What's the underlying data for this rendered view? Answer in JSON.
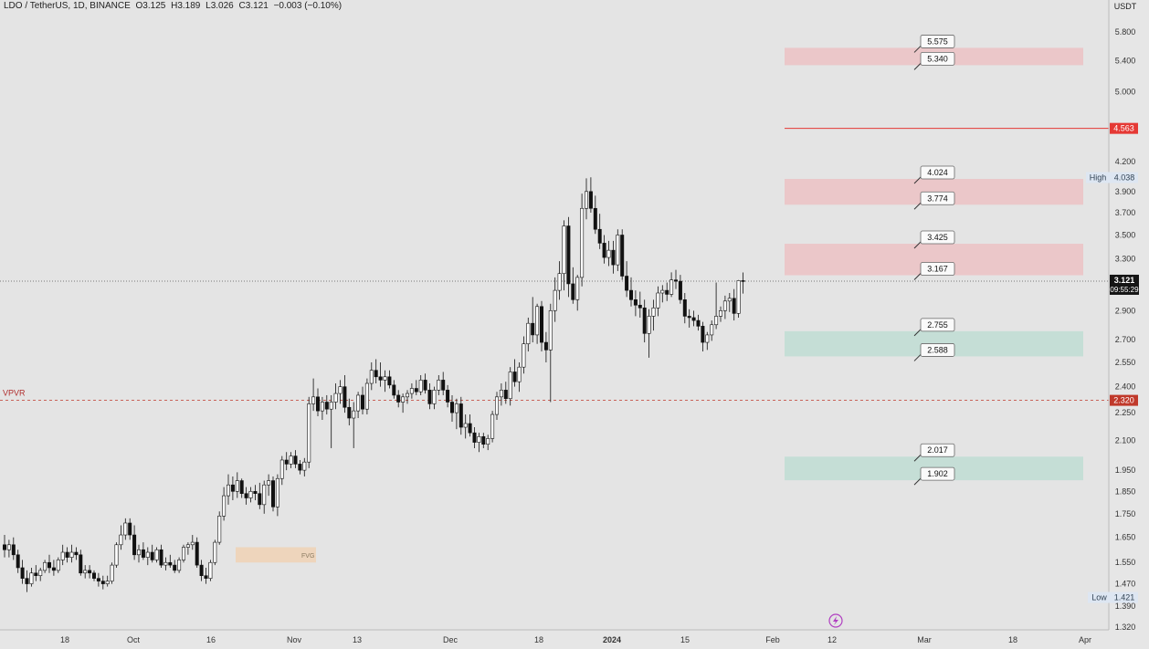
{
  "header": {
    "symbol": "LDO / TetherUS, 1D, BINANCE",
    "open": "O3.125",
    "high": "H3.189",
    "low": "L3.026",
    "close": "C3.121",
    "change": "−0.003 (−0.10%)"
  },
  "axis": {
    "currency": "USDT",
    "y_ticks": [
      "5.800",
      "5.400",
      "5.000",
      "4.200",
      "3.900",
      "3.700",
      "3.500",
      "3.300",
      "2.900",
      "2.700",
      "2.550",
      "2.400",
      "2.250",
      "2.100",
      "1.950",
      "1.850",
      "1.750",
      "1.650",
      "1.550",
      "1.470",
      "1.390",
      "1.320"
    ],
    "x_ticks": [
      "18",
      "Oct",
      "16",
      "Nov",
      "13",
      "Dec",
      "18",
      "2024",
      "15",
      "Feb",
      "12",
      "Mar",
      "18",
      "Apr"
    ]
  },
  "labels": {
    "vpvr": "VPVR",
    "fvg": "FVG",
    "high_label": "High",
    "high_value": "4.038",
    "low_label": "Low",
    "low_value": "1.421",
    "last_price": "3.121",
    "countdown": "09:55:29",
    "resistance_line_value": "4.563",
    "vpvr_value": "2.320",
    "level_tags": [
      "5.575",
      "5.340",
      "4.024",
      "3.774",
      "3.425",
      "3.167",
      "2.755",
      "2.588",
      "2.017",
      "1.902"
    ]
  },
  "colors": {
    "background": "#e4e4e4",
    "supply_zone": "#f4a3a8",
    "demand_zone": "#9fd6c6",
    "fvg_zone": "#f5c99a",
    "resistance_line": "#e53935",
    "vpvr_line": "#c0392b",
    "candle_up": "#ffffff",
    "candle_down": "#111111"
  },
  "chart_data": {
    "type": "candlestick",
    "title": "LDO / TetherUS, 1D, BINANCE",
    "ylim": [
      1.3,
      6.0
    ],
    "y_scale": "log",
    "resistance_line": 4.563,
    "vpvr_line": 2.32,
    "all_time_high": 4.038,
    "all_time_low": 1.421,
    "supply_zones": [
      [
        5.34,
        5.575
      ],
      [
        3.774,
        4.024
      ],
      [
        3.167,
        3.425
      ]
    ],
    "demand_zones": [
      [
        2.588,
        2.755
      ],
      [
        1.902,
        2.017
      ]
    ],
    "fvg_zone": [
      1.55,
      1.61
    ],
    "candles": [
      {
        "o": 1.62,
        "h": 1.66,
        "l": 1.57,
        "c": 1.6
      },
      {
        "o": 1.6,
        "h": 1.64,
        "l": 1.57,
        "c": 1.62
      },
      {
        "o": 1.62,
        "h": 1.65,
        "l": 1.56,
        "c": 1.58
      },
      {
        "o": 1.58,
        "h": 1.6,
        "l": 1.51,
        "c": 1.53
      },
      {
        "o": 1.53,
        "h": 1.56,
        "l": 1.47,
        "c": 1.49
      },
      {
        "o": 1.49,
        "h": 1.52,
        "l": 1.44,
        "c": 1.47
      },
      {
        "o": 1.47,
        "h": 1.53,
        "l": 1.46,
        "c": 1.51
      },
      {
        "o": 1.51,
        "h": 1.54,
        "l": 1.48,
        "c": 1.5
      },
      {
        "o": 1.5,
        "h": 1.53,
        "l": 1.48,
        "c": 1.52
      },
      {
        "o": 1.52,
        "h": 1.56,
        "l": 1.51,
        "c": 1.55
      },
      {
        "o": 1.55,
        "h": 1.58,
        "l": 1.51,
        "c": 1.53
      },
      {
        "o": 1.53,
        "h": 1.56,
        "l": 1.5,
        "c": 1.52
      },
      {
        "o": 1.52,
        "h": 1.57,
        "l": 1.51,
        "c": 1.56
      },
      {
        "o": 1.56,
        "h": 1.62,
        "l": 1.54,
        "c": 1.59
      },
      {
        "o": 1.59,
        "h": 1.61,
        "l": 1.55,
        "c": 1.57
      },
      {
        "o": 1.57,
        "h": 1.62,
        "l": 1.55,
        "c": 1.59
      },
      {
        "o": 1.59,
        "h": 1.61,
        "l": 1.56,
        "c": 1.58
      },
      {
        "o": 1.58,
        "h": 1.6,
        "l": 1.5,
        "c": 1.51
      },
      {
        "o": 1.51,
        "h": 1.54,
        "l": 1.49,
        "c": 1.52
      },
      {
        "o": 1.52,
        "h": 1.54,
        "l": 1.49,
        "c": 1.51
      },
      {
        "o": 1.51,
        "h": 1.52,
        "l": 1.48,
        "c": 1.49
      },
      {
        "o": 1.49,
        "h": 1.51,
        "l": 1.46,
        "c": 1.48
      },
      {
        "o": 1.48,
        "h": 1.5,
        "l": 1.45,
        "c": 1.47
      },
      {
        "o": 1.47,
        "h": 1.5,
        "l": 1.46,
        "c": 1.48
      },
      {
        "o": 1.48,
        "h": 1.55,
        "l": 1.47,
        "c": 1.54
      },
      {
        "o": 1.54,
        "h": 1.63,
        "l": 1.53,
        "c": 1.62
      },
      {
        "o": 1.62,
        "h": 1.7,
        "l": 1.6,
        "c": 1.66
      },
      {
        "o": 1.66,
        "h": 1.73,
        "l": 1.64,
        "c": 1.71
      },
      {
        "o": 1.71,
        "h": 1.73,
        "l": 1.64,
        "c": 1.66
      },
      {
        "o": 1.66,
        "h": 1.7,
        "l": 1.56,
        "c": 1.58
      },
      {
        "o": 1.58,
        "h": 1.62,
        "l": 1.55,
        "c": 1.6
      },
      {
        "o": 1.6,
        "h": 1.63,
        "l": 1.56,
        "c": 1.57
      },
      {
        "o": 1.57,
        "h": 1.61,
        "l": 1.54,
        "c": 1.59
      },
      {
        "o": 1.59,
        "h": 1.62,
        "l": 1.55,
        "c": 1.56
      },
      {
        "o": 1.56,
        "h": 1.61,
        "l": 1.55,
        "c": 1.6
      },
      {
        "o": 1.6,
        "h": 1.62,
        "l": 1.53,
        "c": 1.54
      },
      {
        "o": 1.54,
        "h": 1.57,
        "l": 1.52,
        "c": 1.55
      },
      {
        "o": 1.55,
        "h": 1.58,
        "l": 1.53,
        "c": 1.54
      },
      {
        "o": 1.54,
        "h": 1.56,
        "l": 1.51,
        "c": 1.52
      },
      {
        "o": 1.52,
        "h": 1.57,
        "l": 1.51,
        "c": 1.56
      },
      {
        "o": 1.56,
        "h": 1.62,
        "l": 1.55,
        "c": 1.61
      },
      {
        "o": 1.61,
        "h": 1.63,
        "l": 1.58,
        "c": 1.62
      },
      {
        "o": 1.62,
        "h": 1.66,
        "l": 1.6,
        "c": 1.63
      },
      {
        "o": 1.63,
        "h": 1.65,
        "l": 1.53,
        "c": 1.54
      },
      {
        "o": 1.54,
        "h": 1.56,
        "l": 1.48,
        "c": 1.5
      },
      {
        "o": 1.5,
        "h": 1.53,
        "l": 1.47,
        "c": 1.49
      },
      {
        "o": 1.49,
        "h": 1.56,
        "l": 1.48,
        "c": 1.55
      },
      {
        "o": 1.55,
        "h": 1.64,
        "l": 1.54,
        "c": 1.63
      },
      {
        "o": 1.63,
        "h": 1.76,
        "l": 1.62,
        "c": 1.74
      },
      {
        "o": 1.74,
        "h": 1.87,
        "l": 1.72,
        "c": 1.83
      },
      {
        "o": 1.83,
        "h": 1.93,
        "l": 1.79,
        "c": 1.88
      },
      {
        "o": 1.88,
        "h": 1.92,
        "l": 1.81,
        "c": 1.85
      },
      {
        "o": 1.85,
        "h": 1.94,
        "l": 1.82,
        "c": 1.9
      },
      {
        "o": 1.9,
        "h": 1.91,
        "l": 1.82,
        "c": 1.84
      },
      {
        "o": 1.84,
        "h": 1.87,
        "l": 1.79,
        "c": 1.82
      },
      {
        "o": 1.82,
        "h": 1.87,
        "l": 1.8,
        "c": 1.85
      },
      {
        "o": 1.85,
        "h": 1.88,
        "l": 1.81,
        "c": 1.84
      },
      {
        "o": 1.84,
        "h": 1.89,
        "l": 1.77,
        "c": 1.79
      },
      {
        "o": 1.79,
        "h": 1.9,
        "l": 1.75,
        "c": 1.88
      },
      {
        "o": 1.88,
        "h": 1.93,
        "l": 1.83,
        "c": 1.9
      },
      {
        "o": 1.9,
        "h": 1.92,
        "l": 1.76,
        "c": 1.78
      },
      {
        "o": 1.78,
        "h": 1.93,
        "l": 1.74,
        "c": 1.91
      },
      {
        "o": 1.91,
        "h": 2.02,
        "l": 1.88,
        "c": 2.0
      },
      {
        "o": 2.0,
        "h": 2.04,
        "l": 1.95,
        "c": 1.98
      },
      {
        "o": 1.98,
        "h": 2.04,
        "l": 1.96,
        "c": 2.02
      },
      {
        "o": 2.02,
        "h": 2.05,
        "l": 1.96,
        "c": 1.98
      },
      {
        "o": 1.98,
        "h": 2.0,
        "l": 1.93,
        "c": 1.95
      },
      {
        "o": 1.95,
        "h": 2.01,
        "l": 1.92,
        "c": 1.99
      },
      {
        "o": 1.99,
        "h": 2.34,
        "l": 1.96,
        "c": 2.3
      },
      {
        "o": 2.3,
        "h": 2.45,
        "l": 2.26,
        "c": 2.34
      },
      {
        "o": 2.34,
        "h": 2.39,
        "l": 2.23,
        "c": 2.26
      },
      {
        "o": 2.26,
        "h": 2.34,
        "l": 2.21,
        "c": 2.31
      },
      {
        "o": 2.31,
        "h": 2.35,
        "l": 2.24,
        "c": 2.27
      },
      {
        "o": 2.27,
        "h": 2.35,
        "l": 2.06,
        "c": 2.31
      },
      {
        "o": 2.31,
        "h": 2.42,
        "l": 2.27,
        "c": 2.36
      },
      {
        "o": 2.36,
        "h": 2.44,
        "l": 2.3,
        "c": 2.4
      },
      {
        "o": 2.4,
        "h": 2.47,
        "l": 2.25,
        "c": 2.28
      },
      {
        "o": 2.28,
        "h": 2.33,
        "l": 2.18,
        "c": 2.22
      },
      {
        "o": 2.22,
        "h": 2.31,
        "l": 2.06,
        "c": 2.26
      },
      {
        "o": 2.26,
        "h": 2.37,
        "l": 2.22,
        "c": 2.35
      },
      {
        "o": 2.35,
        "h": 2.4,
        "l": 2.24,
        "c": 2.27
      },
      {
        "o": 2.27,
        "h": 2.45,
        "l": 2.24,
        "c": 2.42
      },
      {
        "o": 2.42,
        "h": 2.55,
        "l": 2.38,
        "c": 2.5
      },
      {
        "o": 2.5,
        "h": 2.57,
        "l": 2.42,
        "c": 2.46
      },
      {
        "o": 2.46,
        "h": 2.55,
        "l": 2.4,
        "c": 2.44
      },
      {
        "o": 2.44,
        "h": 2.5,
        "l": 2.37,
        "c": 2.46
      },
      {
        "o": 2.46,
        "h": 2.5,
        "l": 2.39,
        "c": 2.41
      },
      {
        "o": 2.41,
        "h": 2.44,
        "l": 2.33,
        "c": 2.35
      },
      {
        "o": 2.35,
        "h": 2.38,
        "l": 2.28,
        "c": 2.31
      },
      {
        "o": 2.31,
        "h": 2.36,
        "l": 2.25,
        "c": 2.34
      },
      {
        "o": 2.34,
        "h": 2.38,
        "l": 2.3,
        "c": 2.36
      },
      {
        "o": 2.36,
        "h": 2.42,
        "l": 2.33,
        "c": 2.39
      },
      {
        "o": 2.39,
        "h": 2.44,
        "l": 2.35,
        "c": 2.37
      },
      {
        "o": 2.37,
        "h": 2.47,
        "l": 2.35,
        "c": 2.44
      },
      {
        "o": 2.44,
        "h": 2.48,
        "l": 2.36,
        "c": 2.38
      },
      {
        "o": 2.38,
        "h": 2.42,
        "l": 2.27,
        "c": 2.3
      },
      {
        "o": 2.3,
        "h": 2.4,
        "l": 2.27,
        "c": 2.38
      },
      {
        "o": 2.38,
        "h": 2.47,
        "l": 2.35,
        "c": 2.44
      },
      {
        "o": 2.44,
        "h": 2.49,
        "l": 2.35,
        "c": 2.38
      },
      {
        "o": 2.38,
        "h": 2.41,
        "l": 2.28,
        "c": 2.31
      },
      {
        "o": 2.31,
        "h": 2.35,
        "l": 2.2,
        "c": 2.25
      },
      {
        "o": 2.25,
        "h": 2.33,
        "l": 2.16,
        "c": 2.3
      },
      {
        "o": 2.3,
        "h": 2.34,
        "l": 2.13,
        "c": 2.17
      },
      {
        "o": 2.17,
        "h": 2.24,
        "l": 2.11,
        "c": 2.19
      },
      {
        "o": 2.19,
        "h": 2.24,
        "l": 2.12,
        "c": 2.14
      },
      {
        "o": 2.14,
        "h": 2.17,
        "l": 2.06,
        "c": 2.09
      },
      {
        "o": 2.09,
        "h": 2.14,
        "l": 2.04,
        "c": 2.12
      },
      {
        "o": 2.12,
        "h": 2.14,
        "l": 2.06,
        "c": 2.08
      },
      {
        "o": 2.08,
        "h": 2.13,
        "l": 2.05,
        "c": 2.11
      },
      {
        "o": 2.11,
        "h": 2.26,
        "l": 2.09,
        "c": 2.24
      },
      {
        "o": 2.24,
        "h": 2.37,
        "l": 2.21,
        "c": 2.34
      },
      {
        "o": 2.34,
        "h": 2.42,
        "l": 2.29,
        "c": 2.38
      },
      {
        "o": 2.38,
        "h": 2.43,
        "l": 2.3,
        "c": 2.33
      },
      {
        "o": 2.33,
        "h": 2.52,
        "l": 2.29,
        "c": 2.49
      },
      {
        "o": 2.49,
        "h": 2.57,
        "l": 2.4,
        "c": 2.43
      },
      {
        "o": 2.43,
        "h": 2.55,
        "l": 2.37,
        "c": 2.52
      },
      {
        "o": 2.52,
        "h": 2.72,
        "l": 2.48,
        "c": 2.67
      },
      {
        "o": 2.67,
        "h": 2.85,
        "l": 2.62,
        "c": 2.81
      },
      {
        "o": 2.81,
        "h": 3.0,
        "l": 2.68,
        "c": 2.73
      },
      {
        "o": 2.73,
        "h": 2.95,
        "l": 2.67,
        "c": 2.93
      },
      {
        "o": 2.93,
        "h": 2.97,
        "l": 2.62,
        "c": 2.68
      },
      {
        "o": 2.68,
        "h": 2.75,
        "l": 2.55,
        "c": 2.63
      },
      {
        "o": 2.63,
        "h": 2.95,
        "l": 2.31,
        "c": 2.9
      },
      {
        "o": 2.9,
        "h": 3.15,
        "l": 2.82,
        "c": 3.05
      },
      {
        "o": 3.05,
        "h": 3.28,
        "l": 2.98,
        "c": 3.18
      },
      {
        "o": 3.18,
        "h": 3.63,
        "l": 3.05,
        "c": 3.58
      },
      {
        "o": 3.58,
        "h": 3.66,
        "l": 3.0,
        "c": 3.1
      },
      {
        "o": 3.1,
        "h": 3.23,
        "l": 2.95,
        "c": 2.98
      },
      {
        "o": 2.98,
        "h": 3.17,
        "l": 2.9,
        "c": 3.15
      },
      {
        "o": 3.15,
        "h": 3.88,
        "l": 3.08,
        "c": 3.74
      },
      {
        "o": 3.74,
        "h": 4.03,
        "l": 3.64,
        "c": 3.9
      },
      {
        "o": 3.9,
        "h": 4.04,
        "l": 3.7,
        "c": 3.74
      },
      {
        "o": 3.74,
        "h": 3.86,
        "l": 3.51,
        "c": 3.55
      },
      {
        "o": 3.55,
        "h": 3.69,
        "l": 3.38,
        "c": 3.43
      },
      {
        "o": 3.43,
        "h": 3.5,
        "l": 3.26,
        "c": 3.31
      },
      {
        "o": 3.31,
        "h": 3.45,
        "l": 3.24,
        "c": 3.37
      },
      {
        "o": 3.37,
        "h": 3.45,
        "l": 3.18,
        "c": 3.25
      },
      {
        "o": 3.25,
        "h": 3.55,
        "l": 3.2,
        "c": 3.5
      },
      {
        "o": 3.5,
        "h": 3.55,
        "l": 3.13,
        "c": 3.16
      },
      {
        "o": 3.16,
        "h": 3.28,
        "l": 3.0,
        "c": 3.05
      },
      {
        "o": 3.05,
        "h": 3.15,
        "l": 2.93,
        "c": 2.98
      },
      {
        "o": 2.98,
        "h": 3.05,
        "l": 2.86,
        "c": 2.94
      },
      {
        "o": 2.94,
        "h": 3.04,
        "l": 2.85,
        "c": 2.92
      },
      {
        "o": 2.92,
        "h": 2.98,
        "l": 2.68,
        "c": 2.74
      },
      {
        "o": 2.74,
        "h": 2.91,
        "l": 2.58,
        "c": 2.86
      },
      {
        "o": 2.86,
        "h": 2.98,
        "l": 2.76,
        "c": 2.92
      },
      {
        "o": 2.92,
        "h": 3.08,
        "l": 2.86,
        "c": 3.03
      },
      {
        "o": 3.03,
        "h": 3.09,
        "l": 2.96,
        "c": 3.05
      },
      {
        "o": 3.05,
        "h": 3.11,
        "l": 2.97,
        "c": 3.02
      },
      {
        "o": 3.02,
        "h": 3.19,
        "l": 3.0,
        "c": 3.13
      },
      {
        "o": 3.13,
        "h": 3.21,
        "l": 3.06,
        "c": 3.12
      },
      {
        "o": 3.12,
        "h": 3.17,
        "l": 2.95,
        "c": 2.98
      },
      {
        "o": 2.98,
        "h": 3.03,
        "l": 2.81,
        "c": 2.86
      },
      {
        "o": 2.86,
        "h": 2.91,
        "l": 2.78,
        "c": 2.85
      },
      {
        "o": 2.85,
        "h": 2.9,
        "l": 2.79,
        "c": 2.83
      },
      {
        "o": 2.83,
        "h": 2.87,
        "l": 2.76,
        "c": 2.79
      },
      {
        "o": 2.79,
        "h": 2.82,
        "l": 2.62,
        "c": 2.68
      },
      {
        "o": 2.68,
        "h": 2.75,
        "l": 2.63,
        "c": 2.73
      },
      {
        "o": 2.73,
        "h": 2.83,
        "l": 2.69,
        "c": 2.8
      },
      {
        "o": 2.8,
        "h": 3.11,
        "l": 2.77,
        "c": 2.86
      },
      {
        "o": 2.86,
        "h": 2.93,
        "l": 2.82,
        "c": 2.9
      },
      {
        "o": 2.9,
        "h": 3.01,
        "l": 2.84,
        "c": 2.97
      },
      {
        "o": 2.97,
        "h": 3.03,
        "l": 2.89,
        "c": 2.99
      },
      {
        "o": 2.99,
        "h": 3.06,
        "l": 2.83,
        "c": 2.88
      },
      {
        "o": 2.88,
        "h": 3.13,
        "l": 2.85,
        "c": 3.125
      },
      {
        "o": 3.125,
        "h": 3.189,
        "l": 3.026,
        "c": 3.121
      }
    ]
  }
}
